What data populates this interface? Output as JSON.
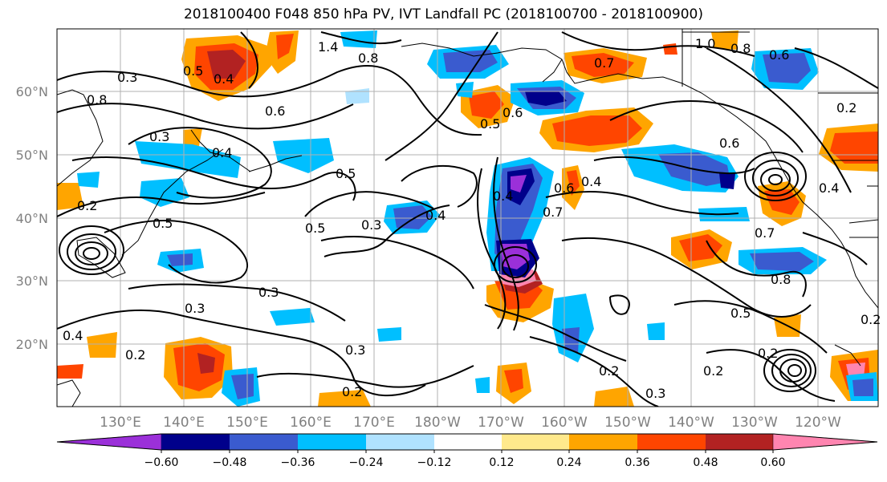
{
  "title": "2018100400 F048 850 hPa PV, IVT Landfall PC (2018100700 - 2018100900)",
  "lat_labels": [
    "60°N",
    "50°N",
    "40°N",
    "30°N",
    "20°N"
  ],
  "lon_labels": [
    "130°E",
    "140°E",
    "150°E",
    "160°E",
    "170°E",
    "180°W",
    "170°W",
    "160°W",
    "150°W",
    "140°W",
    "130°W",
    "120°W"
  ],
  "colorbar": {
    "colors": [
      "#9b30d9",
      "#00008b",
      "#3a5bcf",
      "#00bfff",
      "#b0e2ff",
      "#ffffff",
      "#ffe98c",
      "#ffa500",
      "#ff4500",
      "#b22222",
      "#ff85b0"
    ],
    "tick_labels": [
      "−0.60",
      "−0.48",
      "−0.36",
      "−0.24",
      "−0.12",
      "0.12",
      "0.24",
      "0.36",
      "0.48",
      "0.60"
    ]
  },
  "contour_labels": [
    "0.5",
    "0.4",
    "1.4",
    "0.8",
    "0.7",
    "1.0",
    "0.8",
    "0.6",
    "0.6",
    "0.5",
    "0.3",
    "0.4",
    "0.5",
    "0.5",
    "0.3",
    "0.4",
    "0.5",
    "0.4",
    "0.6",
    "0.4",
    "0.7",
    "0.8",
    "0.3",
    "0.3",
    "0.2",
    "0.3",
    "0.2",
    "0.2",
    "0.3",
    "0.2",
    "0.2",
    "0.5",
    "0.7",
    "0.6",
    "0.8",
    "0.2",
    "0.4",
    "0.2",
    "0.3",
    "0.6",
    "0.2",
    "0.4"
  ]
}
